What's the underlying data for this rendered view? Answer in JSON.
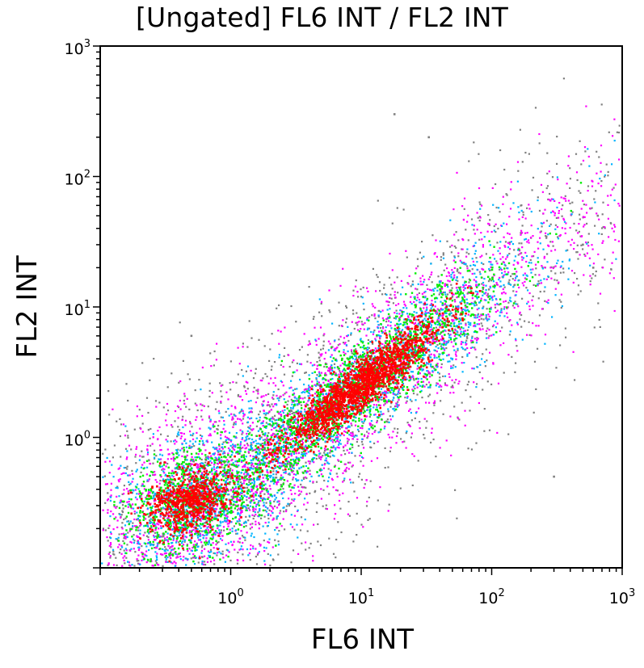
{
  "chart_data": {
    "type": "scatter",
    "title": "[Ungated] FL6 INT / FL2 INT",
    "xlabel": "FL6 INT",
    "ylabel": "FL2 INT",
    "x_scale": "log",
    "y_scale": "log",
    "xlim": [
      0.1,
      1000
    ],
    "ylim": [
      0.1,
      1000
    ],
    "x_ticks": [
      {
        "base": "10",
        "exp": "0",
        "value": 1
      },
      {
        "base": "10",
        "exp": "1",
        "value": 10
      },
      {
        "base": "10",
        "exp": "2",
        "value": 100
      },
      {
        "base": "10",
        "exp": "3",
        "value": 1000
      }
    ],
    "y_ticks": [
      {
        "base": "10",
        "exp": "0",
        "value": 1
      },
      {
        "base": "10",
        "exp": "1",
        "value": 10
      },
      {
        "base": "10",
        "exp": "2",
        "value": 100
      },
      {
        "base": "10",
        "exp": "3",
        "value": 1000
      }
    ],
    "density_colors": [
      "#808080",
      "#ff00ff",
      "#00b4ff",
      "#00ee00",
      "#ff0000"
    ],
    "populations": [
      {
        "center": [
          0.5,
          0.33
        ],
        "spread": [
          0.28,
          0.22
        ],
        "correlation": 0.3
      },
      {
        "center": [
          10,
          2.5
        ],
        "spread": [
          0.55,
          0.45
        ],
        "correlation": 0.92
      }
    ],
    "outliers": [
      {
        "x": 18,
        "y": 300
      },
      {
        "x": 33,
        "y": 200
      },
      {
        "x": 300,
        "y": 0.5
      },
      {
        "x": 600,
        "y": 20
      },
      {
        "x": 650,
        "y": 50
      },
      {
        "x": 500,
        "y": 30
      },
      {
        "x": 0.5,
        "y": 6
      }
    ],
    "grid": false
  }
}
